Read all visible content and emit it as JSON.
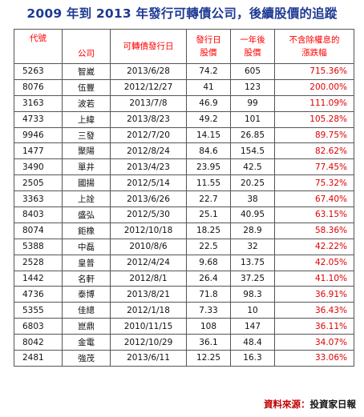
{
  "title": "2009 年到 2013 年發行可轉債公司，後續股價的追蹤",
  "table": {
    "headers": {
      "code": "代號",
      "company": "公司",
      "issue_date": "可轉債發行日",
      "issue_price_1": "發行日",
      "issue_price_2": "股價",
      "after_price_1": "一年後",
      "after_price_2": "股價",
      "change_1": "不含除權息的",
      "change_2": "漲跌幅"
    },
    "rows": [
      {
        "code": "5263",
        "company": "智崴",
        "issue_date": "2013/6/28",
        "issue_price": "74.2",
        "after_price": "605",
        "change": "715.36%"
      },
      {
        "code": "8076",
        "company": "伍豐",
        "issue_date": "2012/12/27",
        "issue_price": "41",
        "after_price": "123",
        "change": "200.00%"
      },
      {
        "code": "3163",
        "company": "波若",
        "issue_date": "2013/7/8",
        "issue_price": "46.9",
        "after_price": "99",
        "change": "111.09%"
      },
      {
        "code": "4733",
        "company": "上緯",
        "issue_date": "2013/8/23",
        "issue_price": "49.2",
        "after_price": "101",
        "change": "105.28%"
      },
      {
        "code": "9946",
        "company": "三發",
        "issue_date": "2012/7/20",
        "issue_price": "14.15",
        "after_price": "26.85",
        "change": "89.75%"
      },
      {
        "code": "1477",
        "company": "聚陽",
        "issue_date": "2012/8/24",
        "issue_price": "84.6",
        "after_price": "154.5",
        "change": "82.62%"
      },
      {
        "code": "3490",
        "company": "單井",
        "issue_date": "2013/4/23",
        "issue_price": "23.95",
        "after_price": "42.5",
        "change": "77.45%"
      },
      {
        "code": "2505",
        "company": "國揚",
        "issue_date": "2012/5/14",
        "issue_price": "11.55",
        "after_price": "20.25",
        "change": "75.32%"
      },
      {
        "code": "3363",
        "company": "上詮",
        "issue_date": "2013/6/26",
        "issue_price": "22.7",
        "after_price": "38",
        "change": "67.40%"
      },
      {
        "code": "8403",
        "company": "盛弘",
        "issue_date": "2012/5/30",
        "issue_price": "25.1",
        "after_price": "40.95",
        "change": "63.15%"
      },
      {
        "code": "8074",
        "company": "鉅橡",
        "issue_date": "2012/10/18",
        "issue_price": "18.25",
        "after_price": "28.9",
        "change": "58.36%"
      },
      {
        "code": "5388",
        "company": "中磊",
        "issue_date": "2010/8/6",
        "issue_price": "22.5",
        "after_price": "32",
        "change": "42.22%"
      },
      {
        "code": "2528",
        "company": "皇普",
        "issue_date": "2012/4/24",
        "issue_price": "9.68",
        "after_price": "13.75",
        "change": "42.05%"
      },
      {
        "code": "1442",
        "company": "名軒",
        "issue_date": "2012/8/1",
        "issue_price": "26.4",
        "after_price": "37.25",
        "change": "41.10%"
      },
      {
        "code": "4736",
        "company": "泰博",
        "issue_date": "2013/8/21",
        "issue_price": "71.8",
        "after_price": "98.3",
        "change": "36.91%"
      },
      {
        "code": "5355",
        "company": "佳總",
        "issue_date": "2012/1/18",
        "issue_price": "7.33",
        "after_price": "10",
        "change": "36.43%"
      },
      {
        "code": "6803",
        "company": "崑鼎",
        "issue_date": "2010/11/15",
        "issue_price": "108",
        "after_price": "147",
        "change": "36.11%"
      },
      {
        "code": "8042",
        "company": "金電",
        "issue_date": "2012/10/29",
        "issue_price": "36.1",
        "after_price": "48.4",
        "change": "34.07%"
      },
      {
        "code": "2481",
        "company": "強茂",
        "issue_date": "2013/6/11",
        "issue_price": "12.25",
        "after_price": "16.3",
        "change": "33.06%"
      }
    ]
  },
  "source": {
    "label": "資料來源：",
    "value": "投資家日報"
  }
}
